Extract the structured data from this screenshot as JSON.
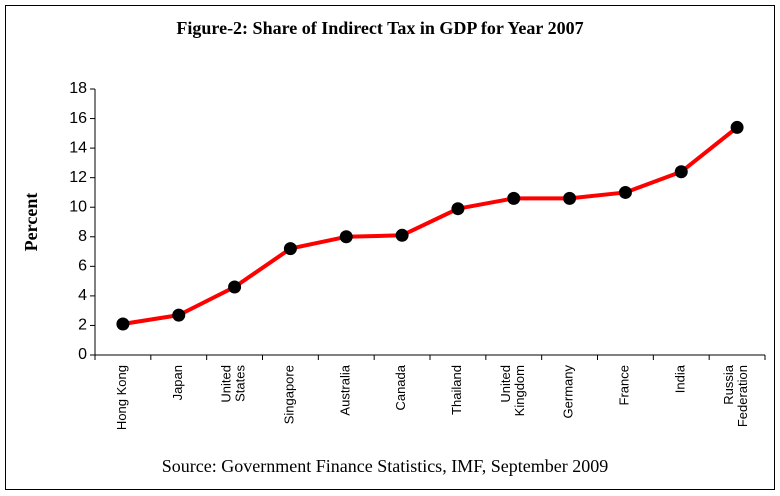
{
  "chart_data": {
    "type": "line",
    "title": "Figure-2: Share of Indirect Tax in GDP for Year 2007",
    "y_label": "Percent",
    "source": "Source: Government Finance Statistics, IMF, September 2009",
    "categories": [
      "Hong Kong",
      "Japan",
      "United\nStates",
      "Singapore",
      "Australia",
      "Canada",
      "Thailand",
      "United\nKingdom",
      "Germany",
      "France",
      "India",
      "Russia\nFederation"
    ],
    "series": [
      {
        "color": "#ff0000",
        "marker_color": "#000000",
        "values": [
          2.1,
          2.7,
          4.6,
          7.2,
          8.0,
          8.1,
          9.9,
          10.6,
          10.6,
          11.0,
          12.4,
          15.4
        ]
      }
    ],
    "ylim": [
      0,
      18
    ],
    "yticks": [
      0,
      2,
      4,
      6,
      8,
      10,
      12,
      14,
      16,
      18
    ],
    "grid": false
  }
}
